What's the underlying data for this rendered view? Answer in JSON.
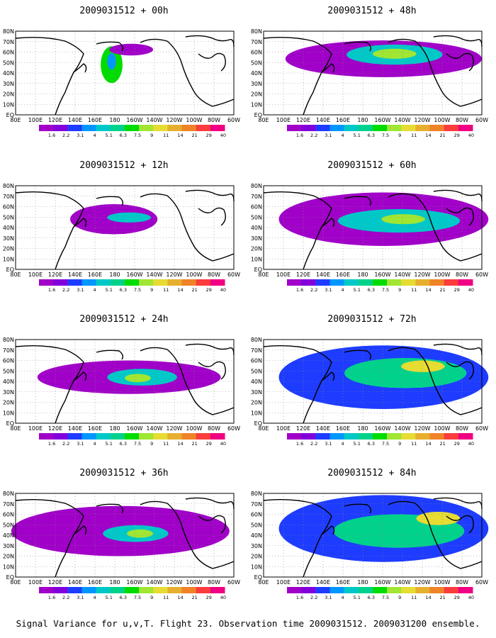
{
  "panels": [
    {
      "title": "2009031512 + 00h"
    },
    {
      "title": "2009031512 + 48h"
    },
    {
      "title": "2009031512 + 12h"
    },
    {
      "title": "2009031512 + 60h"
    },
    {
      "title": "2009031512 + 24h"
    },
    {
      "title": "2009031512 + 72h"
    },
    {
      "title": "2009031512 + 36h"
    },
    {
      "title": "2009031512 + 84h"
    }
  ],
  "lat_labels": [
    "80N",
    "70N",
    "60N",
    "50N",
    "40N",
    "30N",
    "20N",
    "10N",
    "EQ"
  ],
  "lon_labels": [
    "80E",
    "100E",
    "120E",
    "140E",
    "160E",
    "180",
    "160W",
    "140W",
    "120W",
    "100W",
    "80W",
    "60W"
  ],
  "colorbar": {
    "labels": [
      "1.6",
      "2.2",
      "3.1",
      "4",
      "5.1",
      "6.3",
      "7.5",
      "9",
      "11",
      "14",
      "21",
      "29",
      "40"
    ],
    "colors": [
      "#a000c8",
      "#8200dc",
      "#1e3cff",
      "#0096ff",
      "#00c8c8",
      "#00d28c",
      "#00dc00",
      "#a0e632",
      "#e6dc32",
      "#e6af2d",
      "#f08228",
      "#fa3c3c",
      "#f00082"
    ]
  },
  "caption": "Signal Variance for u,v,T. Flight 23. Observation time 2009031512. 2009031200 ensemble."
}
